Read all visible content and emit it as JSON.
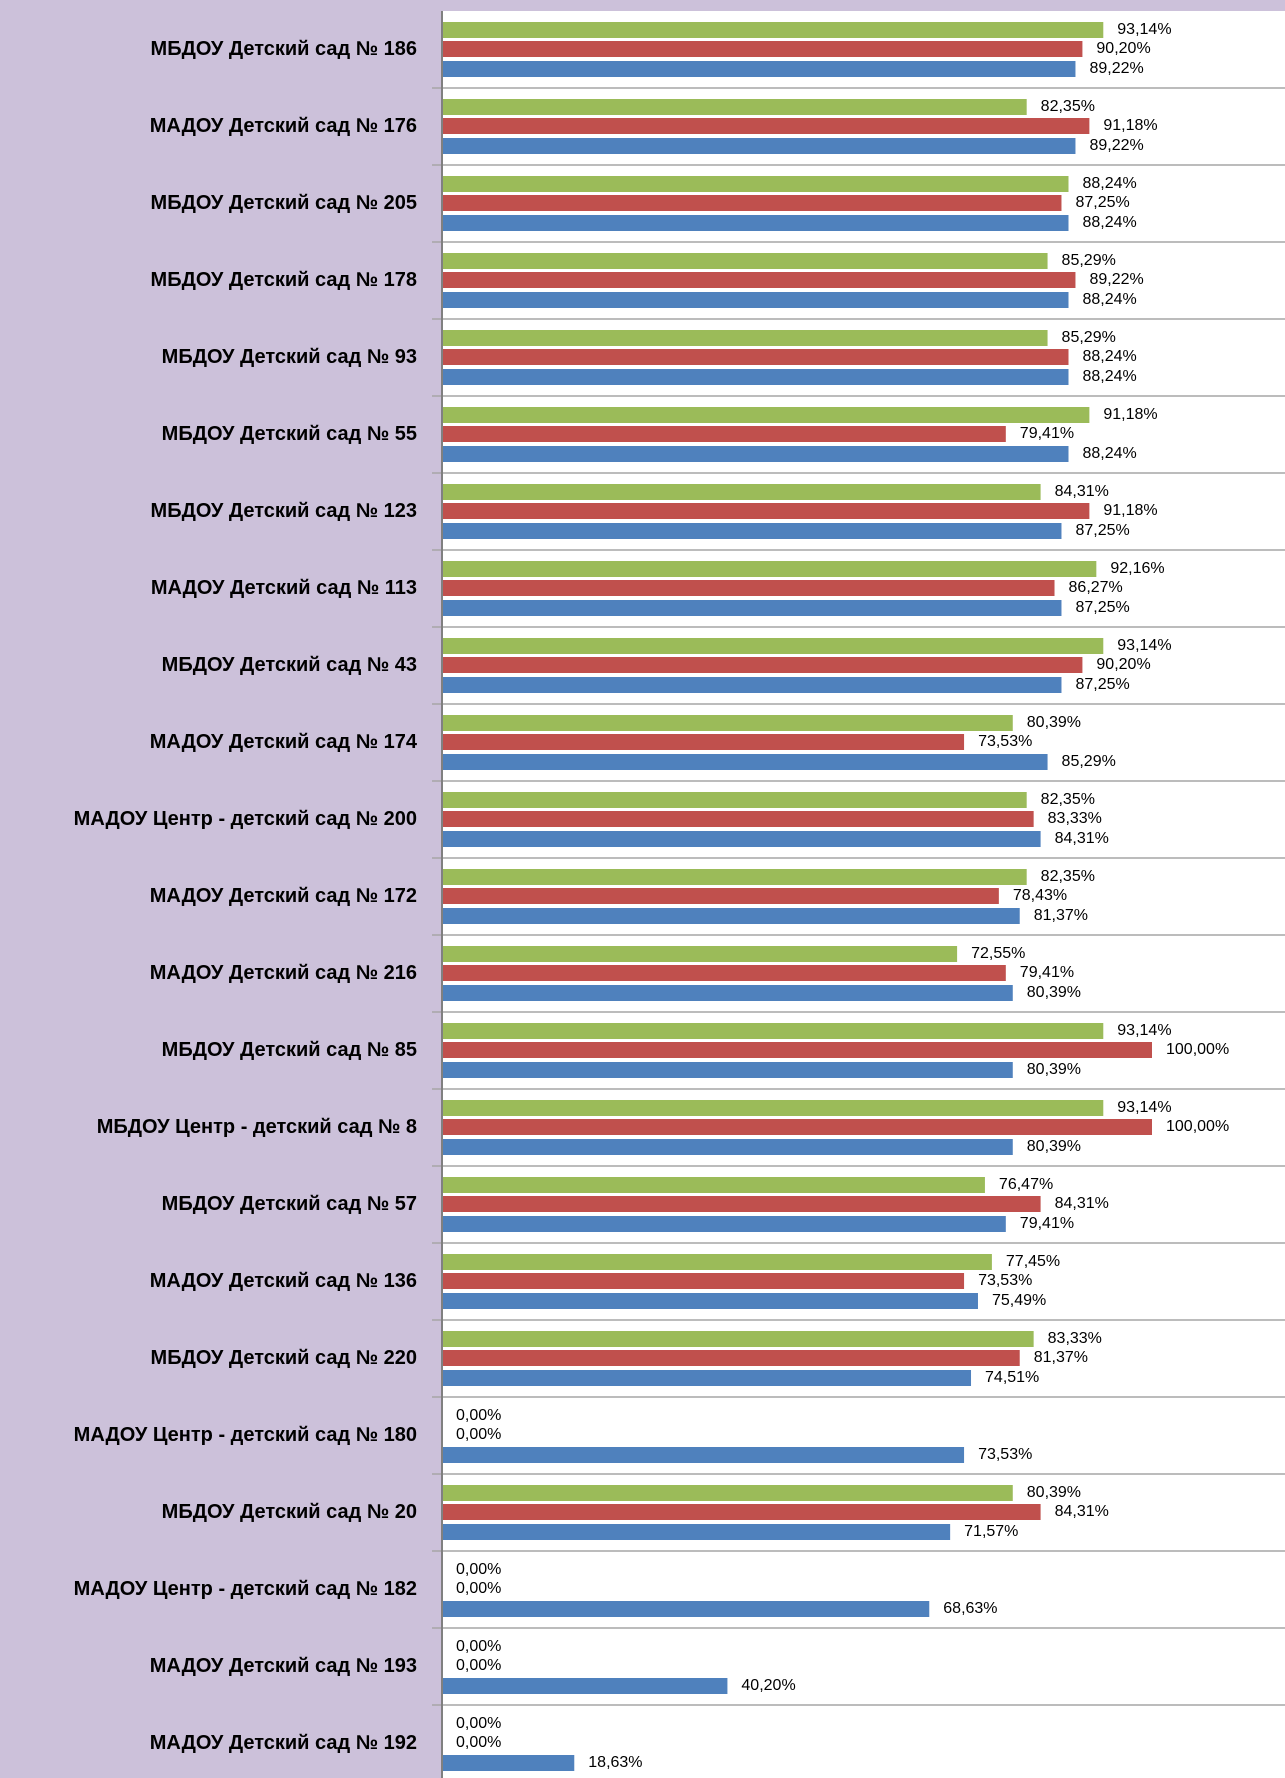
{
  "chart_data": {
    "type": "hbar",
    "categories": [
      "МБДОУ Детский сад № 186",
      "МАДОУ Детский сад № 176",
      "МБДОУ Детский сад № 205",
      "МБДОУ Детский сад № 178",
      "МБДОУ Детский сад № 93",
      "МБДОУ Детский сад № 55",
      "МБДОУ Детский сад № 123",
      "МАДОУ Детский сад № 113",
      "МБДОУ Детский сад № 43",
      "МАДОУ Детский сад № 174",
      "МАДОУ Центр - детский сад № 200",
      "МАДОУ Детский сад № 172",
      "МАДОУ Детский сад № 216",
      "МБДОУ Детский сад № 85",
      "МБДОУ Центр - детский сад № 8",
      "МБДОУ Детский сад № 57",
      "МАДОУ Детский сад № 136",
      "МБДОУ Детский сад № 220",
      "МАДОУ Центр - детский сад № 180",
      "МБДОУ Детский сад № 20",
      "МАДОУ Центр - детский сад № 182",
      "МАДОУ Детский сад № 193",
      "МАДОУ Детский сад № 192"
    ],
    "series": [
      {
        "color": "#9bbb59",
        "values": [
          93.14,
          82.35,
          88.24,
          85.29,
          85.29,
          91.18,
          84.31,
          92.16,
          93.14,
          80.39,
          82.35,
          82.35,
          72.55,
          93.14,
          93.14,
          76.47,
          77.45,
          83.33,
          0,
          80.39,
          0,
          0,
          0
        ],
        "value_labels": [
          "93,14%",
          "82,35%",
          "88,24%",
          "85,29%",
          "85,29%",
          "91,18%",
          "84,31%",
          "92,16%",
          "93,14%",
          "80,39%",
          "82,35%",
          "82,35%",
          "72,55%",
          "93,14%",
          "93,14%",
          "76,47%",
          "77,45%",
          "83,33%",
          "0,00%",
          "80,39%",
          "0,00%",
          "0,00%",
          "0,00%"
        ]
      },
      {
        "color": "#c0504d",
        "values": [
          90.2,
          91.18,
          87.25,
          89.22,
          88.24,
          79.41,
          91.18,
          86.27,
          90.2,
          73.53,
          83.33,
          78.43,
          79.41,
          100,
          100,
          84.31,
          73.53,
          81.37,
          0,
          84.31,
          0,
          0,
          0
        ],
        "value_labels": [
          "90,20%",
          "91,18%",
          "87,25%",
          "89,22%",
          "88,24%",
          "79,41%",
          "91,18%",
          "86,27%",
          "90,20%",
          "73,53%",
          "83,33%",
          "78,43%",
          "79,41%",
          "100,00%",
          "100,00%",
          "84,31%",
          "73,53%",
          "81,37%",
          "0,00%",
          "84,31%",
          "0,00%",
          "0,00%",
          "0,00%"
        ]
      },
      {
        "color": "#4f81bd",
        "values": [
          89.22,
          89.22,
          88.24,
          88.24,
          88.24,
          88.24,
          87.25,
          87.25,
          87.25,
          85.29,
          84.31,
          81.37,
          80.39,
          80.39,
          80.39,
          79.41,
          75.49,
          74.51,
          73.53,
          71.57,
          68.63,
          40.2,
          18.63
        ],
        "value_labels": [
          "89,22%",
          "89,22%",
          "88,24%",
          "88,24%",
          "88,24%",
          "88,24%",
          "87,25%",
          "87,25%",
          "87,25%",
          "85,29%",
          "84,31%",
          "81,37%",
          "80,39%",
          "80,39%",
          "80,39%",
          "79,41%",
          "75,49%",
          "74,51%",
          "73,53%",
          "71,57%",
          "68,63%",
          "40,20%",
          "18,63%"
        ]
      }
    ],
    "xlim": [
      0,
      100
    ]
  }
}
